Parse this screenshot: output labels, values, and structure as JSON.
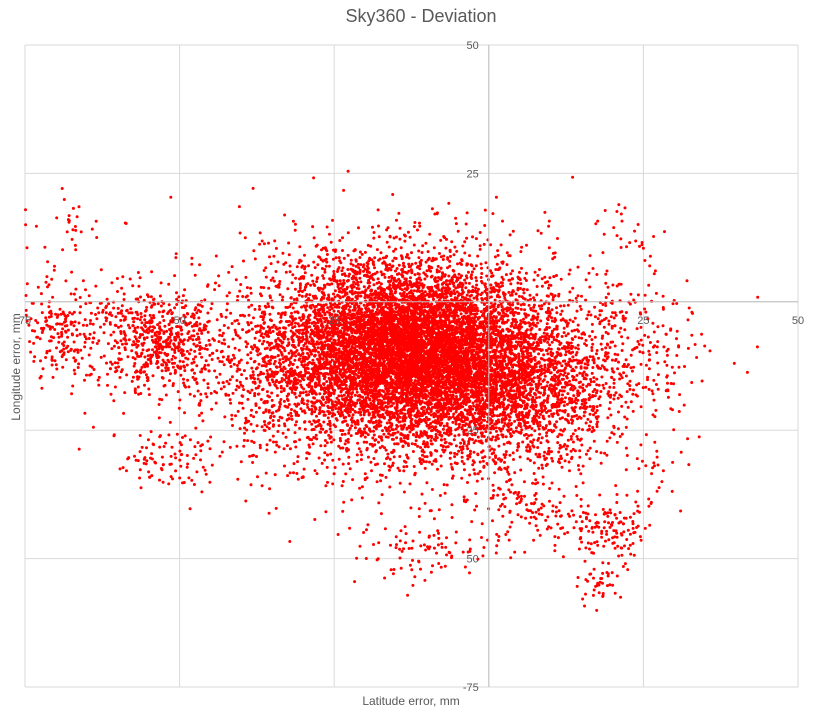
{
  "chart_data": {
    "type": "scatter",
    "title": "Sky360 - Deviation",
    "xlabel": "Latitude error, mm",
    "ylabel": "Longitude error, mm",
    "xlim": [
      -75,
      50
    ],
    "ylim": [
      -75,
      50
    ],
    "x_ticks": [
      -75,
      -50,
      -25,
      0,
      25,
      50
    ],
    "y_ticks": [
      -75,
      -50,
      -25,
      0,
      25,
      50
    ],
    "x_tick_labels": [
      "75",
      "50",
      "25",
      "",
      "25",
      "50"
    ],
    "y_tick_labels": [
      "-75",
      "50",
      "25",
      "",
      "25",
      "50"
    ],
    "grid": true,
    "legend": "none",
    "series": [
      {
        "color": "#ff0000",
        "clusters": [
          {
            "cx": -12,
            "cy": -9,
            "sx": 10,
            "sy": 8,
            "n": 6500
          },
          {
            "cx": -20,
            "cy": -12,
            "sx": 14,
            "sy": 11,
            "n": 3000
          },
          {
            "cx": 4,
            "cy": -17,
            "sx": 9,
            "sy": 8,
            "n": 1800
          },
          {
            "cx": -54,
            "cy": -7,
            "sx": 5,
            "sy": 5,
            "n": 550
          },
          {
            "cx": -69,
            "cy": -6,
            "sx": 4,
            "sy": 5,
            "n": 220
          },
          {
            "cx": 18,
            "cy": -44,
            "sx": 4,
            "sy": 3,
            "n": 140
          },
          {
            "cx": 5,
            "cy": -40,
            "sx": 5,
            "sy": 4,
            "n": 120
          },
          {
            "cx": 18,
            "cy": -55,
            "sx": 2,
            "sy": 2,
            "n": 40
          },
          {
            "cx": -51,
            "cy": -31,
            "sx": 4,
            "sy": 3,
            "n": 90
          },
          {
            "cx": -10,
            "cy": -48,
            "sx": 5,
            "sy": 3,
            "n": 80
          },
          {
            "cx": 22,
            "cy": 13,
            "sx": 3,
            "sy": 3,
            "n": 25
          },
          {
            "cx": -68,
            "cy": 15,
            "sx": 6,
            "sy": 3,
            "n": 30
          },
          {
            "cx": 20,
            "cy": -8,
            "sx": 8,
            "sy": 7,
            "n": 250
          },
          {
            "cx": 27,
            "cy": -33,
            "sx": 3,
            "sy": 4,
            "n": 25
          }
        ]
      }
    ]
  }
}
